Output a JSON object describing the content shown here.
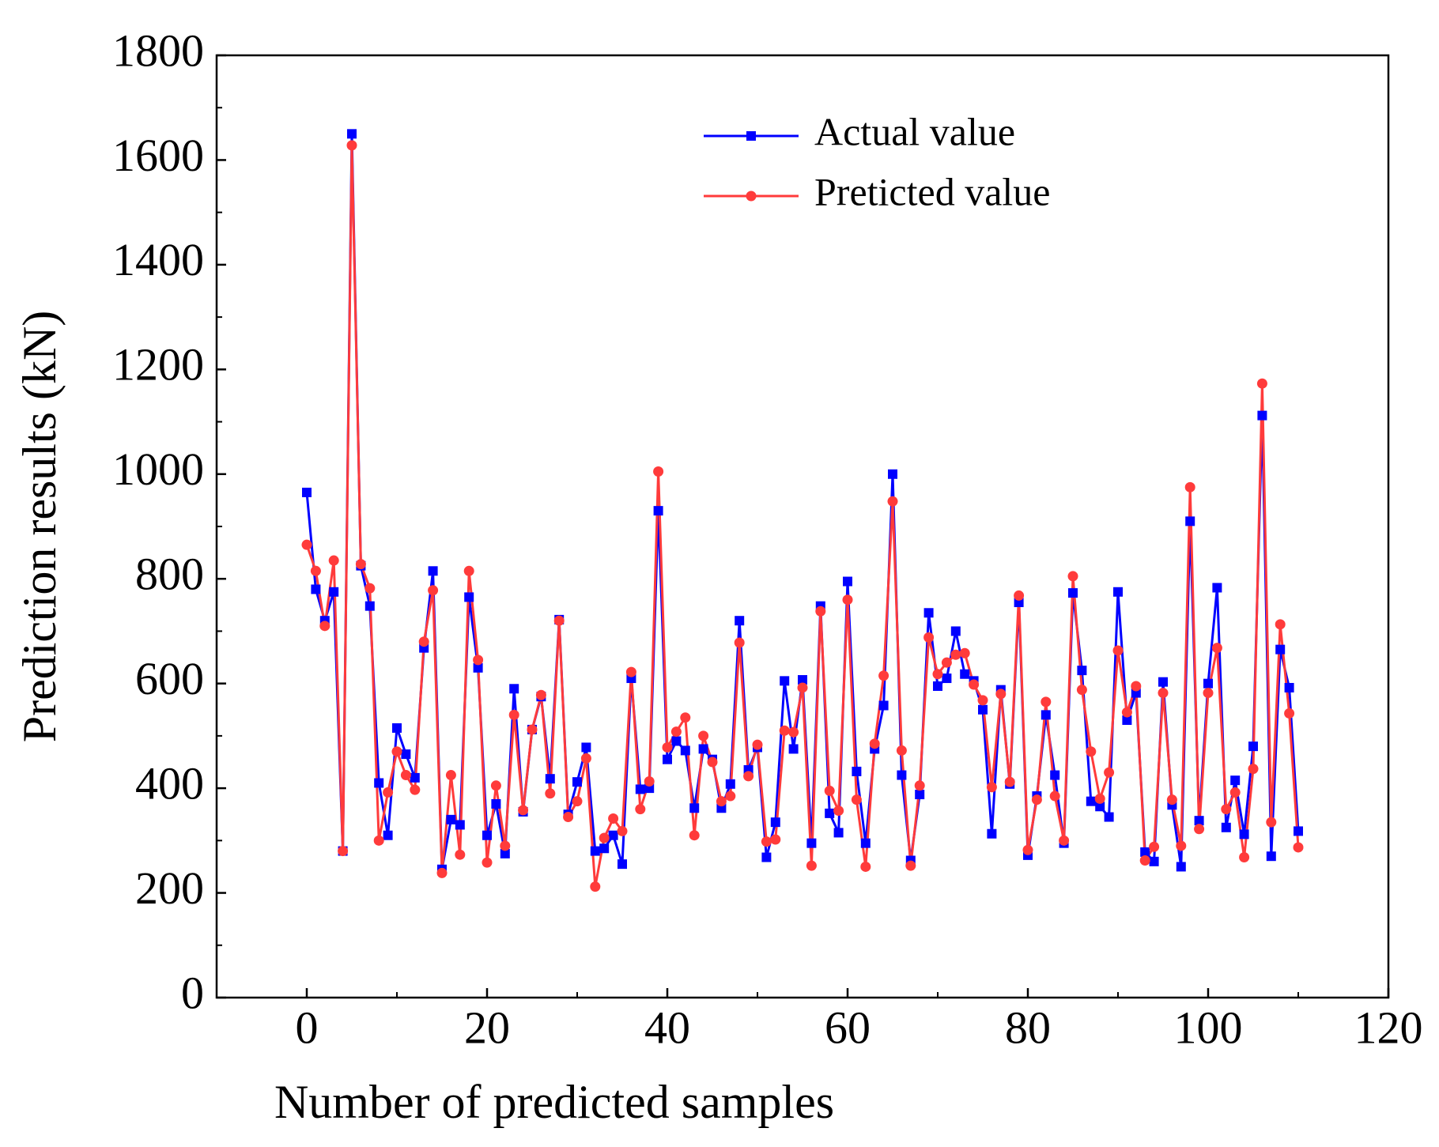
{
  "chart_data": {
    "type": "line",
    "x_label": "Number of predicted samples",
    "y_label": "Prediction results (kN)",
    "xlim": [
      -10,
      120
    ],
    "xticks": [
      0,
      20,
      40,
      60,
      80,
      100,
      120
    ],
    "ylim": [
      0,
      1800
    ],
    "yticks": [
      0,
      200,
      400,
      600,
      800,
      1000,
      1200,
      1400,
      1600,
      1800
    ],
    "legend": "upper center",
    "x": [
      0,
      1,
      2,
      3,
      4,
      5,
      6,
      7,
      8,
      9,
      10,
      11,
      12,
      13,
      14,
      15,
      16,
      17,
      18,
      19,
      20,
      21,
      22,
      23,
      24,
      25,
      26,
      27,
      28,
      29,
      30,
      31,
      32,
      33,
      34,
      35,
      36,
      37,
      38,
      39,
      40,
      41,
      42,
      43,
      44,
      45,
      46,
      47,
      48,
      49,
      50,
      51,
      52,
      53,
      54,
      55,
      56,
      57,
      58,
      59,
      60,
      61,
      62,
      63,
      64,
      65,
      66,
      67,
      68,
      69,
      70,
      71,
      72,
      73,
      74,
      75,
      76,
      77,
      78,
      79,
      80,
      81,
      82,
      83,
      84,
      85,
      86,
      87,
      88,
      89,
      90,
      91,
      92,
      93,
      94,
      95,
      96,
      97,
      98,
      99,
      100,
      101,
      102,
      103,
      104,
      105,
      106,
      107,
      108,
      109,
      110
    ],
    "series": [
      {
        "name": "Actual value",
        "color": "#0000ff",
        "marker": "square",
        "values": [
          965,
          780,
          720,
          775,
          280,
          1650,
          825,
          748,
          410,
          310,
          515,
          465,
          420,
          668,
          815,
          245,
          340,
          330,
          765,
          630,
          310,
          370,
          275,
          590,
          355,
          512,
          575,
          418,
          722,
          350,
          412,
          478,
          280,
          285,
          310,
          255,
          610,
          398,
          400,
          930,
          455,
          490,
          472,
          362,
          475,
          455,
          362,
          408,
          720,
          435,
          478,
          268,
          335,
          605,
          475,
          607,
          295,
          748,
          352,
          315,
          795,
          432,
          295,
          475,
          558,
          1000,
          425,
          262,
          388,
          735,
          595,
          610,
          700,
          618,
          605,
          550,
          313,
          588,
          408,
          755,
          272,
          385,
          540,
          425,
          295,
          773,
          625,
          375,
          365,
          345,
          775,
          530,
          582,
          278,
          260,
          603,
          368,
          250,
          910,
          338,
          600,
          783,
          325,
          415,
          312,
          480,
          1112,
          270,
          665,
          592,
          318
        ]
      },
      {
        "name": "Preticted value",
        "color": "#ff3b3b",
        "marker": "circle",
        "values": [
          865,
          815,
          710,
          835,
          280,
          1628,
          828,
          782,
          300,
          392,
          470,
          425,
          397,
          680,
          778,
          238,
          425,
          273,
          815,
          645,
          258,
          405,
          290,
          540,
          358,
          512,
          578,
          390,
          720,
          345,
          375,
          457,
          212,
          305,
          342,
          318,
          622,
          360,
          413,
          1005,
          478,
          508,
          535,
          310,
          500,
          450,
          375,
          385,
          678,
          423,
          483,
          298,
          302,
          510,
          507,
          592,
          252,
          738,
          395,
          357,
          760,
          378,
          250,
          485,
          615,
          948,
          472,
          252,
          405,
          688,
          618,
          640,
          655,
          658,
          598,
          568,
          402,
          580,
          412,
          768,
          282,
          378,
          565,
          385,
          300,
          805,
          588,
          470,
          380,
          430,
          663,
          545,
          595,
          262,
          288,
          582,
          378,
          290,
          975,
          322,
          582,
          668,
          360,
          392,
          268,
          437,
          1173,
          335,
          713,
          543,
          287
        ]
      }
    ]
  }
}
